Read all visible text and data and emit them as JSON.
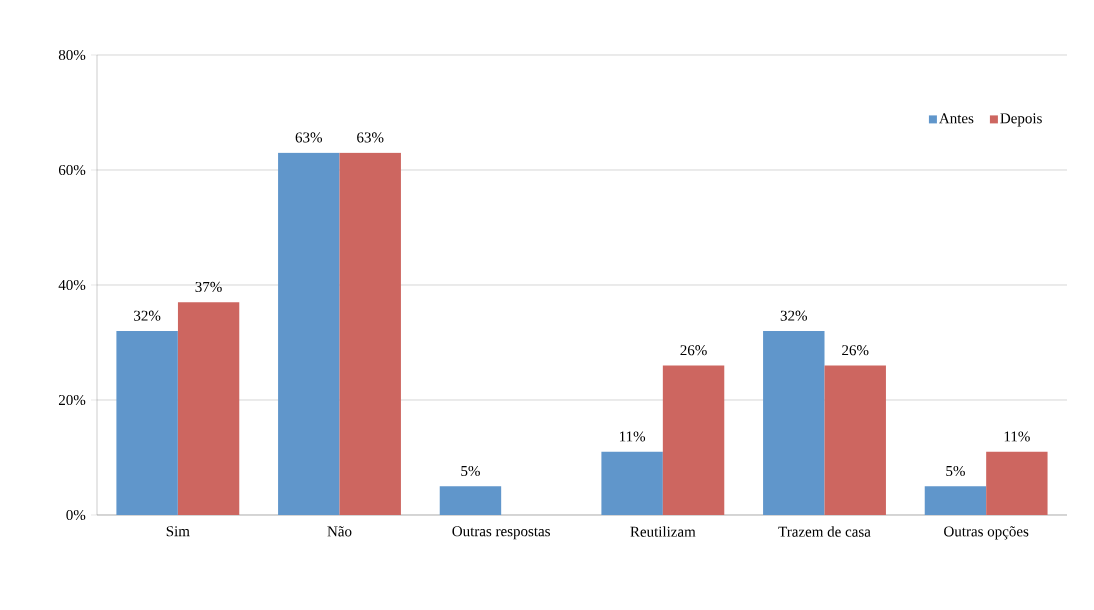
{
  "chart_data": {
    "type": "bar",
    "categories": [
      "Sim",
      "Não",
      "Outras respostas",
      "Reutilizam",
      "Trazem de casa",
      "Outras opções"
    ],
    "series": [
      {
        "name": "Antes",
        "color": "#6096cb",
        "values": [
          32,
          63,
          5,
          11,
          32,
          5
        ],
        "value_labels": [
          "32%",
          "63%",
          "5%",
          "11%",
          "32%",
          "5%"
        ]
      },
      {
        "name": "Depois",
        "color": "#cd6660",
        "values": [
          37,
          63,
          null,
          26,
          26,
          11
        ],
        "value_labels": [
          "37%",
          "63%",
          null,
          "26%",
          "26%",
          "11%"
        ]
      }
    ],
    "ylim": [
      0,
      80
    ],
    "yticks": [
      {
        "value": 0,
        "label": "0%"
      },
      {
        "value": 20,
        "label": "20%"
      },
      {
        "value": 40,
        "label": "40%"
      },
      {
        "value": 60,
        "label": "60%"
      },
      {
        "value": 80,
        "label": "80%"
      }
    ],
    "grid": "y",
    "legend": "top right"
  }
}
